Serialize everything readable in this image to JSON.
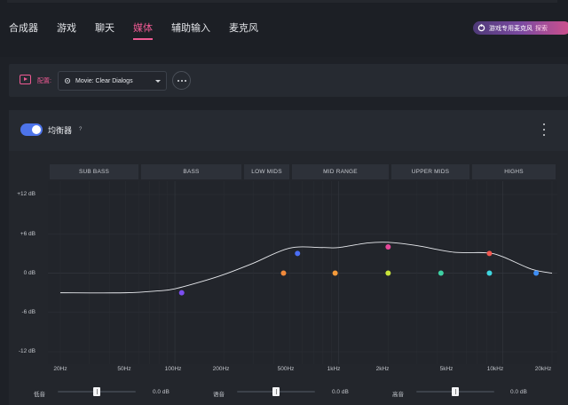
{
  "nav": {
    "tabs": [
      {
        "label": "合成器"
      },
      {
        "label": "游戏"
      },
      {
        "label": "聊天"
      },
      {
        "label": "媒体"
      },
      {
        "label": "辅助输入"
      },
      {
        "label": "麦克风"
      }
    ],
    "active_tab": "媒体"
  },
  "promo": {
    "icon": "steelseries-icon",
    "name": "游戏专用麦克风",
    "action": "探索"
  },
  "config": {
    "label": "配置:",
    "preset": "Movie: Clear Dialogs",
    "icon": "settings-gear-icon"
  },
  "equalizer": {
    "enabled": true,
    "title": "均衡器",
    "help": "?",
    "bands": [
      "SUB BASS",
      "BASS",
      "LOW MIDS",
      "MID RANGE",
      "UPPER MIDS",
      "HIGHS"
    ],
    "y_labels": [
      "+12 dB",
      "+6 dB",
      "0 dB",
      "-6 dB",
      "-12 dB"
    ],
    "x_labels": [
      "20Hz",
      "50Hz",
      "100Hz",
      "200Hz",
      "500Hz",
      "1kHz",
      "2kHz",
      "5kHz",
      "10kHz",
      "20kHz"
    ]
  },
  "chart_data": {
    "type": "line",
    "xscale": "log",
    "ylim": [
      -12,
      12
    ],
    "xlim": [
      20,
      20000
    ],
    "grid": true,
    "curve": {
      "x": [
        20,
        50,
        80,
        100,
        150,
        200,
        300,
        500,
        800,
        1000,
        1500,
        2000,
        3000,
        5000,
        8000,
        10000,
        15000,
        20000
      ],
      "y": [
        -3,
        -3,
        -2.7,
        -2.4,
        -1.2,
        -0.2,
        1.5,
        3.8,
        3.9,
        3.9,
        4.6,
        4.7,
        4.2,
        3.2,
        3.1,
        2.5,
        0.6,
        0
      ]
    },
    "points": [
      {
        "x": 110,
        "y": -3,
        "color": "#7b4ef0"
      },
      {
        "x": 460,
        "y": 0,
        "color": "#f28a3b"
      },
      {
        "x": 560,
        "y": 3,
        "color": "#4a6ef5"
      },
      {
        "x": 950,
        "y": 0,
        "color": "#f59a3a"
      },
      {
        "x": 2000,
        "y": 4,
        "color": "#e6489a"
      },
      {
        "x": 2000,
        "y": 0,
        "color": "#c9e43a"
      },
      {
        "x": 4200,
        "y": 0,
        "color": "#3ed0a3"
      },
      {
        "x": 8300,
        "y": 3,
        "color": "#f0564e"
      },
      {
        "x": 8300,
        "y": 0,
        "color": "#3fd6e0"
      },
      {
        "x": 16000,
        "y": 0,
        "color": "#3e8ef5"
      }
    ]
  },
  "sliders": [
    {
      "label": "低音",
      "value": "0.0 dB"
    },
    {
      "label": "语音",
      "value": "0.0 dB"
    },
    {
      "label": "高音",
      "value": "0.0 dB"
    }
  ],
  "colors": {
    "accent": "#ee5a93",
    "toggle": "#4d74ea"
  }
}
